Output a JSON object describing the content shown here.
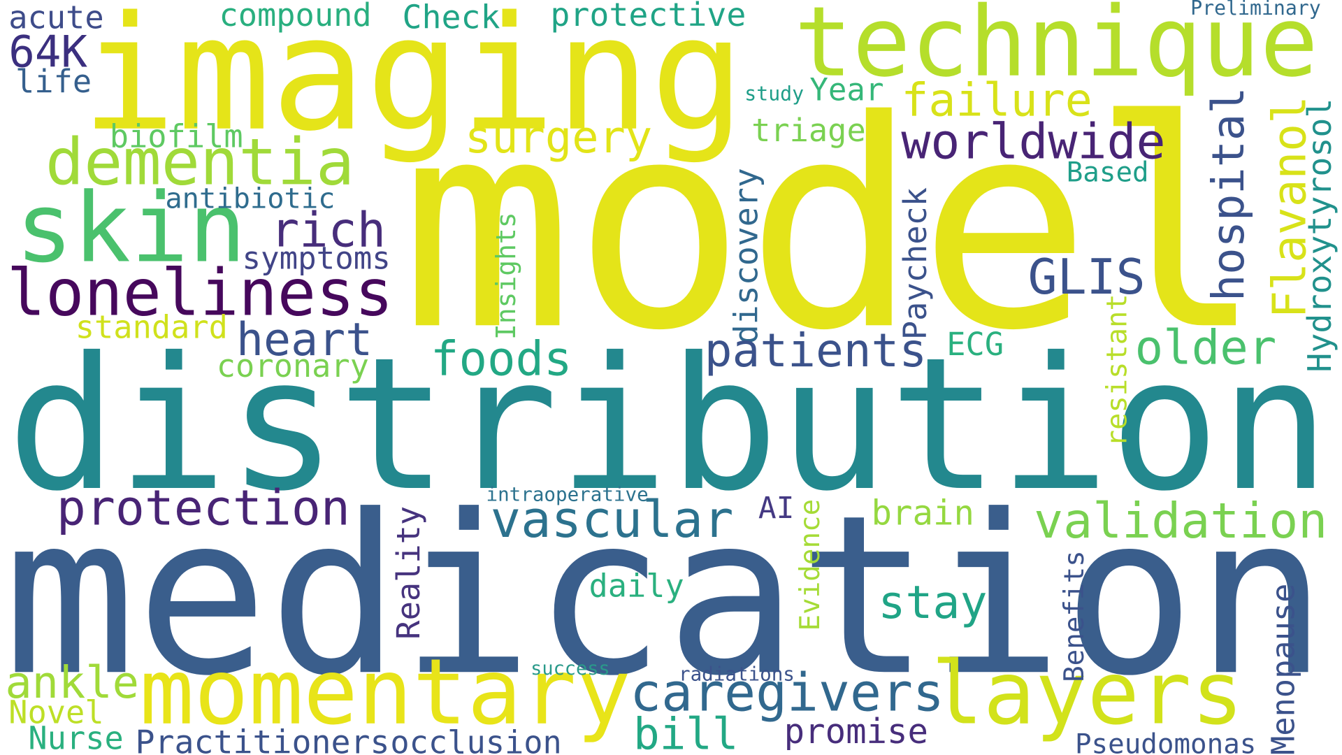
{
  "words": [
    {
      "text": "imaging",
      "color": "#e5e419"
    },
    {
      "text": "model",
      "color": "#e4e419"
    },
    {
      "text": "distribution",
      "color": "#23888e"
    },
    {
      "text": "medication",
      "color": "#3a5e8c"
    },
    {
      "text": "technique",
      "color": "#b5de2b"
    },
    {
      "text": "momentary",
      "color": "#e8e419"
    },
    {
      "text": "layers",
      "color": "#d2e21b"
    },
    {
      "text": "dementia",
      "color": "#a0da39"
    },
    {
      "text": "skin",
      "color": "#4ac16d"
    },
    {
      "text": "loneliness",
      "color": "#46085c"
    },
    {
      "text": "surgery",
      "color": "#e2e418"
    },
    {
      "text": "failure",
      "color": "#d8e219"
    },
    {
      "text": "worldwide",
      "color": "#482475"
    },
    {
      "text": "rich",
      "color": "#472d7b"
    },
    {
      "text": "symptoms",
      "color": "#414487"
    },
    {
      "text": "antibiotic",
      "color": "#2f6c8e"
    },
    {
      "text": "biofilm",
      "color": "#5ec962"
    },
    {
      "text": "acute",
      "color": "#3e4c8a"
    },
    {
      "text": "64K",
      "color": "#3b2f7f"
    },
    {
      "text": "life",
      "color": "#355f8d"
    },
    {
      "text": "compound",
      "color": "#29af7f"
    },
    {
      "text": "Check",
      "color": "#20a486"
    },
    {
      "text": "protective",
      "color": "#20a486"
    },
    {
      "text": "Preliminary",
      "color": "#31688e"
    },
    {
      "text": "study",
      "color": "#1f9e89"
    },
    {
      "text": "Year",
      "color": "#35b779"
    },
    {
      "text": "triage",
      "color": "#7ad151"
    },
    {
      "text": "Based",
      "color": "#1f9e89"
    },
    {
      "text": "hospital",
      "color": "#3b528b"
    },
    {
      "text": "Flavanol",
      "color": "#d8e219"
    },
    {
      "text": "Hydroxytyrosol",
      "color": "#21918c"
    },
    {
      "text": "GLIS",
      "color": "#3b528b"
    },
    {
      "text": "Paycheck",
      "color": "#3b528b"
    },
    {
      "text": "discovery",
      "color": "#31688e"
    },
    {
      "text": "Insights",
      "color": "#5ec962"
    },
    {
      "text": "resistant",
      "color": "#b8de29"
    },
    {
      "text": "standard",
      "color": "#d0e11c"
    },
    {
      "text": "heart",
      "color": "#3b528b"
    },
    {
      "text": "coronary",
      "color": "#7ad151"
    },
    {
      "text": "foods",
      "color": "#22a884"
    },
    {
      "text": "patients",
      "color": "#3b528b"
    },
    {
      "text": "ECG",
      "color": "#2ab07f"
    },
    {
      "text": "older",
      "color": "#4ac16d"
    },
    {
      "text": "protection",
      "color": "#482475"
    },
    {
      "text": "intraoperative",
      "color": "#2c728e"
    },
    {
      "text": "vascular",
      "color": "#2c728e"
    },
    {
      "text": "AI",
      "color": "#443983"
    },
    {
      "text": "Evidence",
      "color": "#a5db36"
    },
    {
      "text": "brain",
      "color": "#95d840"
    },
    {
      "text": "validation",
      "color": "#7ad151"
    },
    {
      "text": "Reality",
      "color": "#46337e"
    },
    {
      "text": "daily",
      "color": "#2ab07f"
    },
    {
      "text": "stay",
      "color": "#20a486"
    },
    {
      "text": "Benefits",
      "color": "#3b528b"
    },
    {
      "text": "Menopause",
      "color": "#3b528b"
    },
    {
      "text": "ankle",
      "color": "#a0da39"
    },
    {
      "text": "Novel",
      "color": "#bddf26"
    },
    {
      "text": "Nurse",
      "color": "#2ab07f"
    },
    {
      "text": "Practitioners",
      "color": "#3b528b"
    },
    {
      "text": "occlusion",
      "color": "#3b528b"
    },
    {
      "text": "success",
      "color": "#2a9a8a"
    },
    {
      "text": "radiations",
      "color": "#3b528b"
    },
    {
      "text": "caregivers",
      "color": "#31688e"
    },
    {
      "text": "bill",
      "color": "#22a884"
    },
    {
      "text": "promise",
      "color": "#472d7b"
    },
    {
      "text": "Pseudomonas",
      "color": "#3b528b"
    }
  ]
}
